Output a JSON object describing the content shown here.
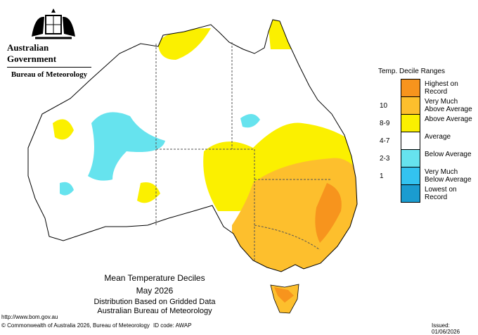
{
  "header": {
    "government": "Australian Government",
    "agency": "Bureau of Meteorology"
  },
  "legend": {
    "title": "Temp. Decile Ranges",
    "items": [
      {
        "label": "Highest on Record",
        "color": "#f7941d"
      },
      {
        "range": "10",
        "label": "Very Much Above Average",
        "color": "#fdbf2d"
      },
      {
        "range": "8-9",
        "label": "Above Average",
        "color": "#fbf000"
      },
      {
        "range": "4-7",
        "label": "Average",
        "color": "#ffffff"
      },
      {
        "range": "2-3",
        "label": "Below Average",
        "color": "#66e3ee"
      },
      {
        "range": "1",
        "label": "Very Much Below Average",
        "color": "#33c3f0"
      },
      {
        "label": "Lowest on Record",
        "color": "#1b9cd0"
      }
    ]
  },
  "caption": {
    "title": "Mean Temperature Deciles",
    "period": "May 2026",
    "method": "Distribution Based on Gridded Data",
    "source": "Australian Bureau of Meteorology"
  },
  "footer": {
    "url": "http://www.bom.gov.au",
    "copyright": "© Commonwealth of Australia 2026, Bureau of Meteorology",
    "id": "ID code: AWAP",
    "issued": "Issued: 01/06/2026"
  }
}
